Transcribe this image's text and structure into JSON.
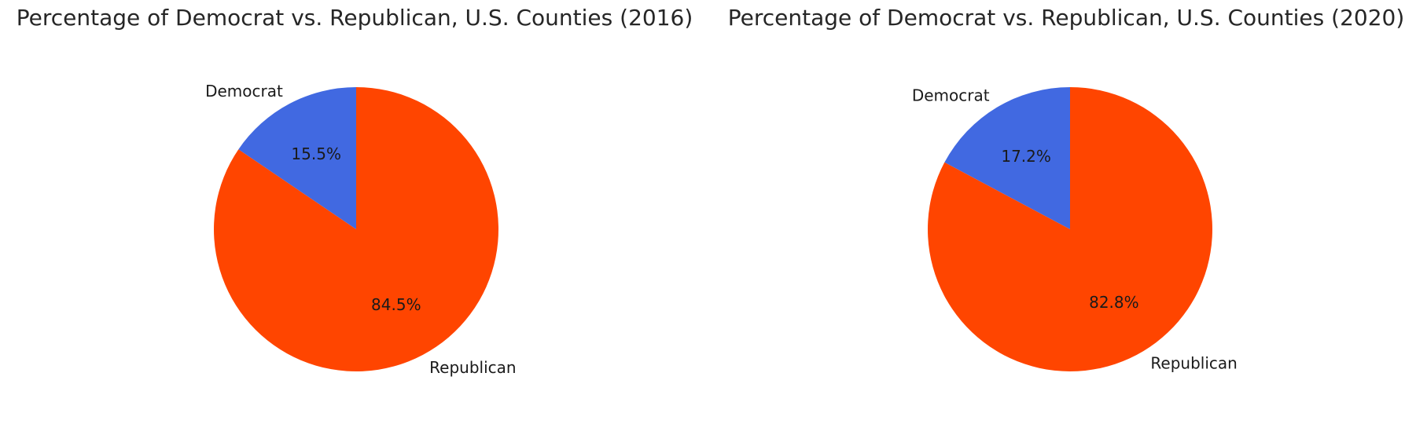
{
  "chart_data": [
    {
      "type": "pie",
      "title": "Percentage of Democrat vs. Republican, U.S. Counties (2016)",
      "categories": [
        "Democrat",
        "Republican"
      ],
      "values": [
        15.5,
        84.5
      ],
      "value_labels": [
        "15.5%",
        "84.5%"
      ],
      "colors": [
        "#4169e1",
        "#ff4500"
      ],
      "start_angle_deg": 90,
      "direction": "counterclockwise"
    },
    {
      "type": "pie",
      "title": "Percentage of Democrat vs. Republican, U.S. Counties (2020)",
      "categories": [
        "Democrat",
        "Republican"
      ],
      "values": [
        17.2,
        82.8
      ],
      "value_labels": [
        "17.2%",
        "82.8%"
      ],
      "colors": [
        "#4169e1",
        "#ff4500"
      ],
      "start_angle_deg": 90,
      "direction": "counterclockwise"
    }
  ]
}
